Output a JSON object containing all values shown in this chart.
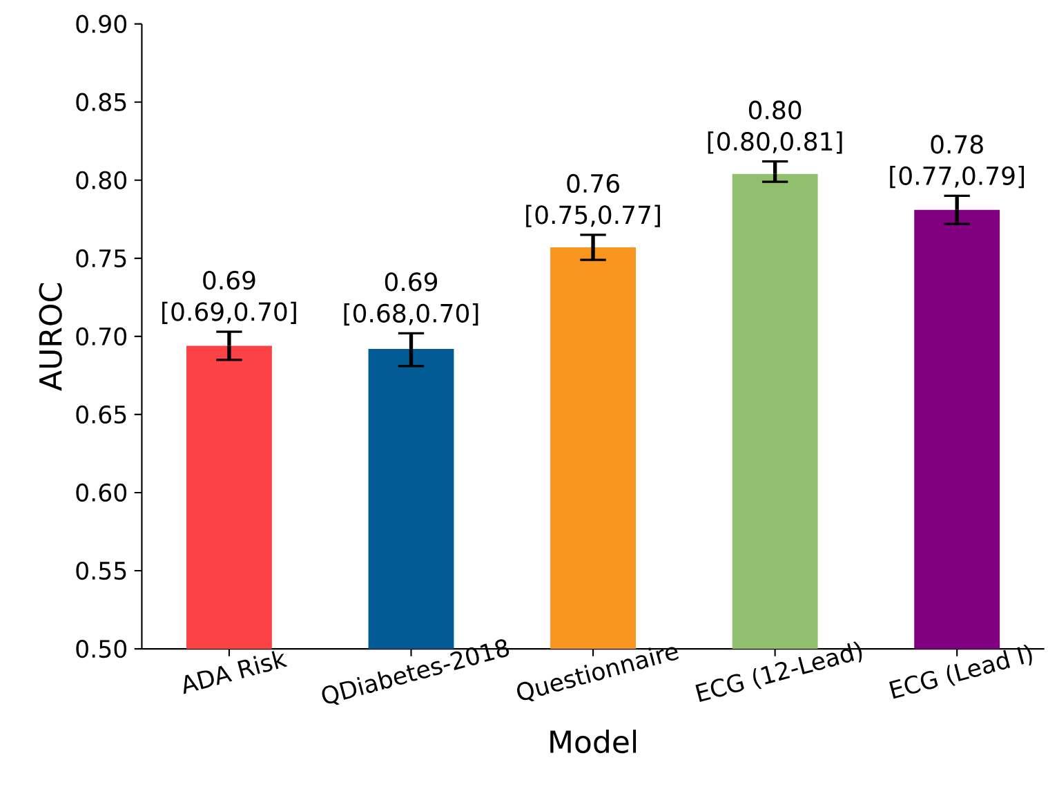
{
  "chart_data": {
    "type": "bar",
    "xlabel": "Model",
    "ylabel": "AUROC",
    "categories": [
      "ADA Risk",
      "QDiabetes-2018",
      "Questionnaire",
      "ECG (12-Lead)",
      "ECG (Lead I)"
    ],
    "values": [
      0.694,
      0.692,
      0.757,
      0.804,
      0.781
    ],
    "colors": [
      "#fd4246",
      "#035b96",
      "#f7951e",
      "#90bf6d",
      "#800080"
    ],
    "errors": [
      [
        0.685,
        0.703
      ],
      [
        0.681,
        0.702
      ],
      [
        0.749,
        0.765
      ],
      [
        0.799,
        0.812
      ],
      [
        0.772,
        0.79
      ]
    ],
    "value_labels": [
      "0.69 [0.69,0.70]",
      "0.69 [0.68,0.70]",
      "0.76 [0.75,0.77]",
      "0.80 [0.80,0.81]",
      "0.78 [0.77,0.79]"
    ],
    "ylim": [
      0.5,
      0.9
    ],
    "yticks": [
      {
        "value": 0.5,
        "label": "0.50"
      },
      0.55,
      {
        "value": 0.6,
        "label": "0.60"
      },
      0.65,
      {
        "value": 0.7,
        "label": "0.70"
      },
      0.75,
      {
        "value": 0.8,
        "label": "0.80"
      },
      0.85,
      {
        "value": 0.9,
        "label": "0.90"
      }
    ]
  }
}
